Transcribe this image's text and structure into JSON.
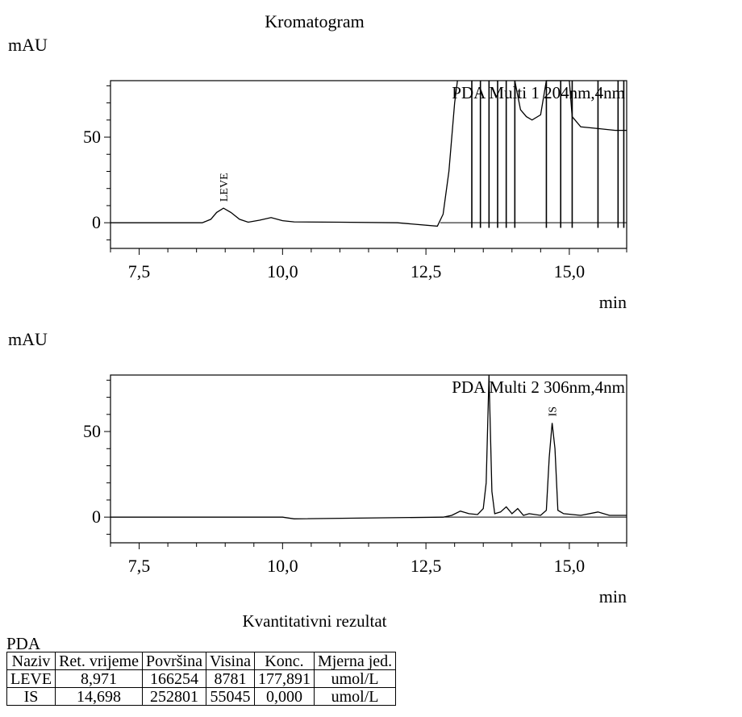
{
  "report": {
    "title": "Kromatogram",
    "results_title": "Kvantitativni rezultat",
    "table_caption": "PDA"
  },
  "chart_data": [
    {
      "type": "line",
      "ylabel": "mAU",
      "xlabel": "min",
      "trace_label": "PDA Multi 1 204nm,4nm",
      "xlim": [
        7.0,
        16.0
      ],
      "ylim": [
        -15,
        83
      ],
      "xticks": [
        7.5,
        10.0,
        12.5,
        15.0
      ],
      "xtick_labels": [
        "7,5",
        "10,0",
        "12,5",
        "15,0"
      ],
      "yticks": [
        0,
        50
      ],
      "ytick_labels": [
        "0",
        "50"
      ],
      "peaks": [
        {
          "name": "LEVE",
          "rt": 8.97,
          "height": 8.5,
          "width": 0.12
        }
      ],
      "series": [
        {
          "x": [
            7.0,
            8.0,
            8.6,
            8.75,
            8.85,
            8.97,
            9.1,
            9.25,
            9.4,
            9.6,
            9.8,
            10.0,
            10.2,
            11.0,
            12.0,
            12.7,
            12.8,
            12.9,
            13.0,
            13.05
          ],
          "y": [
            0,
            0,
            0,
            2,
            6,
            8.5,
            6,
            2,
            0.3,
            1.5,
            3,
            1.2,
            0.5,
            0.3,
            0,
            -2,
            5,
            30,
            70,
            83
          ]
        }
      ],
      "saturated_segment": {
        "x": [
          14.05,
          14.15,
          14.25,
          14.35,
          14.5,
          14.6,
          14.7,
          15.0,
          15.05,
          15.2,
          15.5,
          15.8,
          16.0
        ],
        "y": [
          83,
          66,
          62,
          60,
          63,
          83,
          83,
          83,
          62,
          56,
          55,
          54,
          54
        ]
      },
      "spike_lines": [
        13.3,
        13.45,
        13.6,
        13.75,
        13.9,
        14.05,
        14.6,
        14.85,
        15.05,
        15.5,
        15.85,
        15.95
      ]
    },
    {
      "type": "line",
      "ylabel": "mAU",
      "xlabel": "min",
      "trace_label": "PDA Multi 2 306nm,4nm",
      "xlim": [
        7.0,
        16.0
      ],
      "ylim": [
        -15,
        83
      ],
      "xticks": [
        7.5,
        10.0,
        12.5,
        15.0
      ],
      "xtick_labels": [
        "7,5",
        "10,0",
        "12,5",
        "15,0"
      ],
      "yticks": [
        0,
        50
      ],
      "ytick_labels": [
        "0",
        "50"
      ],
      "peaks": [
        {
          "name": "IS",
          "rt": 14.7,
          "height": 55,
          "width": 0.05
        }
      ],
      "series": [
        {
          "x": [
            7.0,
            10.0,
            10.2,
            12.8,
            12.95,
            13.1,
            13.25,
            13.4,
            13.5,
            13.55,
            13.6,
            13.65,
            13.7,
            13.8,
            13.9,
            14.0,
            14.1,
            14.2,
            14.3,
            14.5,
            14.6,
            14.65,
            14.7,
            14.75,
            14.8,
            14.9,
            15.2,
            15.5,
            15.7,
            16.0
          ],
          "y": [
            0,
            0,
            -1,
            0,
            1,
            3.5,
            2,
            1.5,
            5,
            20,
            83,
            15,
            2,
            3,
            6,
            2,
            5,
            1,
            2,
            1,
            4,
            35,
            55,
            40,
            4,
            2,
            1,
            3,
            1,
            1
          ]
        }
      ]
    }
  ],
  "results_table": {
    "headers": [
      "Naziv",
      "Ret. vrijeme",
      "Površina",
      "Visina",
      "Konc.",
      "Mjerna jed."
    ],
    "rows": [
      [
        "LEVE",
        "8,971",
        "166254",
        "8781",
        "177,891",
        "umol/L"
      ],
      [
        "IS",
        "14,698",
        "252801",
        "55045",
        "0,000",
        "umol/L"
      ]
    ]
  }
}
